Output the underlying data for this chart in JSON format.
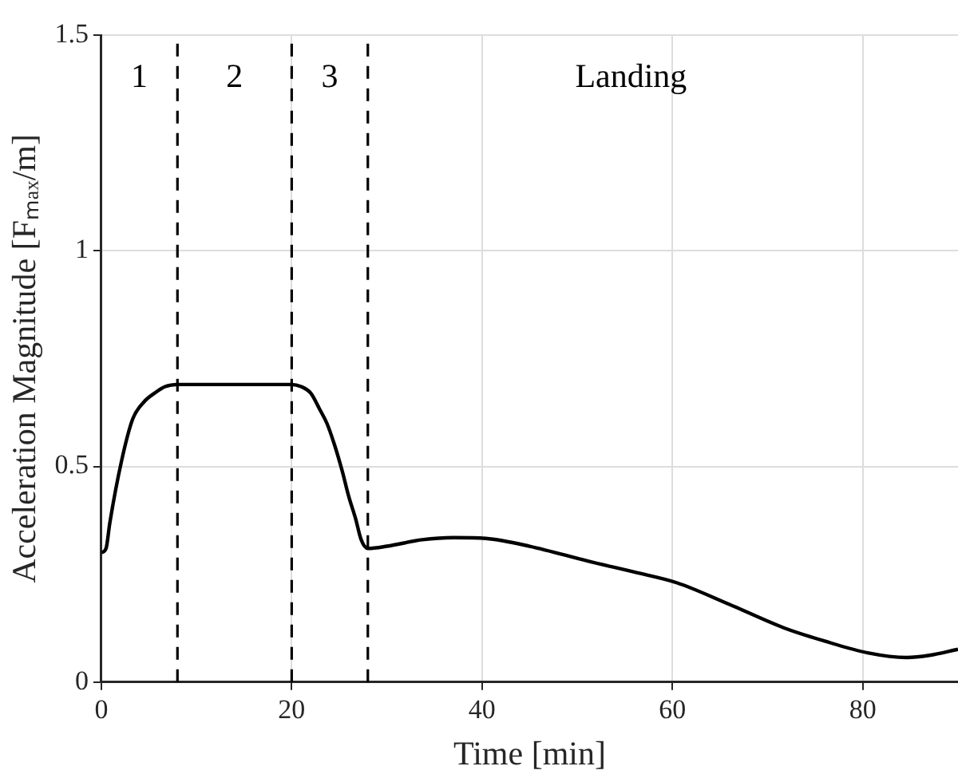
{
  "chart_data": {
    "type": "line",
    "xlabel": "Time [min]",
    "ylabel": "Acceleration Magnitude [Fₘₐₓ/m]",
    "series": [
      {
        "color": "#000000",
        "x": [
          0,
          0.5,
          0.9,
          2.1,
          3.3,
          4.5,
          5.6,
          6.7,
          8,
          14,
          20,
          21,
          22,
          23,
          23.7,
          24.5,
          25.3,
          26,
          26.7,
          27.3,
          28,
          30,
          33.7,
          37,
          40.4,
          45,
          51.2,
          56,
          60.5,
          66,
          71.8,
          76,
          80.5,
          84.6,
          87,
          90
        ],
        "values": [
          0.3,
          0.31,
          0.37,
          0.51,
          0.61,
          0.65,
          0.67,
          0.685,
          0.69,
          0.69,
          0.69,
          0.685,
          0.67,
          0.63,
          0.6,
          0.55,
          0.49,
          0.43,
          0.38,
          0.33,
          0.31,
          0.315,
          0.33,
          0.335,
          0.333,
          0.315,
          0.28,
          0.255,
          0.23,
          0.18,
          0.125,
          0.095,
          0.068,
          0.057,
          0.062,
          0.076
        ]
      }
    ],
    "ref_lines": [
      {
        "axis": "x",
        "value": 8,
        "line_style": "dashed",
        "color": "#000000"
      },
      {
        "axis": "x",
        "value": 20,
        "line_style": "dashed",
        "color": "#000000"
      },
      {
        "axis": "x",
        "value": 28,
        "line_style": "dashed",
        "color": "#000000"
      }
    ],
    "annotations": [
      "1",
      "2",
      "3",
      "Landing"
    ],
    "xlim": [
      0,
      90
    ],
    "ylim": [
      0,
      1.5
    ],
    "xticks": [
      0,
      20,
      40,
      60,
      80
    ],
    "yticks": [
      0,
      0.5,
      1,
      1.5
    ],
    "grid": true,
    "legend": false,
    "marker": "none",
    "line_style": "solid"
  }
}
